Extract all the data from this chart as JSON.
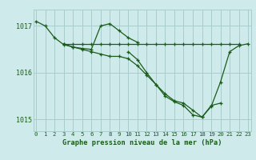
{
  "title": "Graphe pression niveau de la mer (hPa)",
  "bg_color": "#ceeaea",
  "grid_color": "#a8cccc",
  "line_color": "#1a5c1a",
  "hours": [
    0,
    1,
    2,
    3,
    4,
    5,
    6,
    7,
    8,
    9,
    10,
    11,
    12,
    13,
    14,
    15,
    16,
    17,
    18,
    19,
    20,
    21,
    22,
    23
  ],
  "series": [
    [
      1017.1,
      1017.0,
      1016.75,
      1016.6,
      1016.55,
      1016.52,
      1016.5,
      1017.0,
      1017.05,
      1016.9,
      1016.75,
      1016.65,
      null,
      null,
      null,
      null,
      null,
      null,
      null,
      null,
      null,
      null,
      null,
      null
    ],
    [
      null,
      null,
      null,
      1016.62,
      1016.55,
      1016.5,
      1016.45,
      1016.4,
      1016.35,
      1016.35,
      1016.3,
      1016.15,
      1015.95,
      1015.75,
      1015.55,
      1015.4,
      1015.35,
      1015.2,
      1015.05,
      1015.3,
      1015.35,
      null,
      null,
      null
    ],
    [
      null,
      null,
      null,
      1016.62,
      1016.62,
      1016.62,
      1016.62,
      1016.62,
      1016.62,
      1016.62,
      1016.62,
      1016.62,
      1016.62,
      1016.62,
      1016.62,
      1016.62,
      1016.62,
      1016.62,
      1016.62,
      1016.62,
      1016.62,
      1016.62,
      1016.62,
      null
    ],
    [
      null,
      null,
      null,
      null,
      null,
      null,
      null,
      null,
      null,
      null,
      1016.45,
      1016.28,
      1016.0,
      1015.75,
      1015.5,
      1015.38,
      1015.3,
      1015.1,
      1015.05,
      1015.28,
      1015.8,
      1016.45,
      1016.58,
      1016.62
    ]
  ],
  "ylim": [
    1014.75,
    1017.35
  ],
  "yticks": [
    1015,
    1016,
    1017
  ],
  "xlim": [
    -0.3,
    23.3
  ],
  "figsize": [
    3.2,
    2.0
  ],
  "dpi": 100
}
